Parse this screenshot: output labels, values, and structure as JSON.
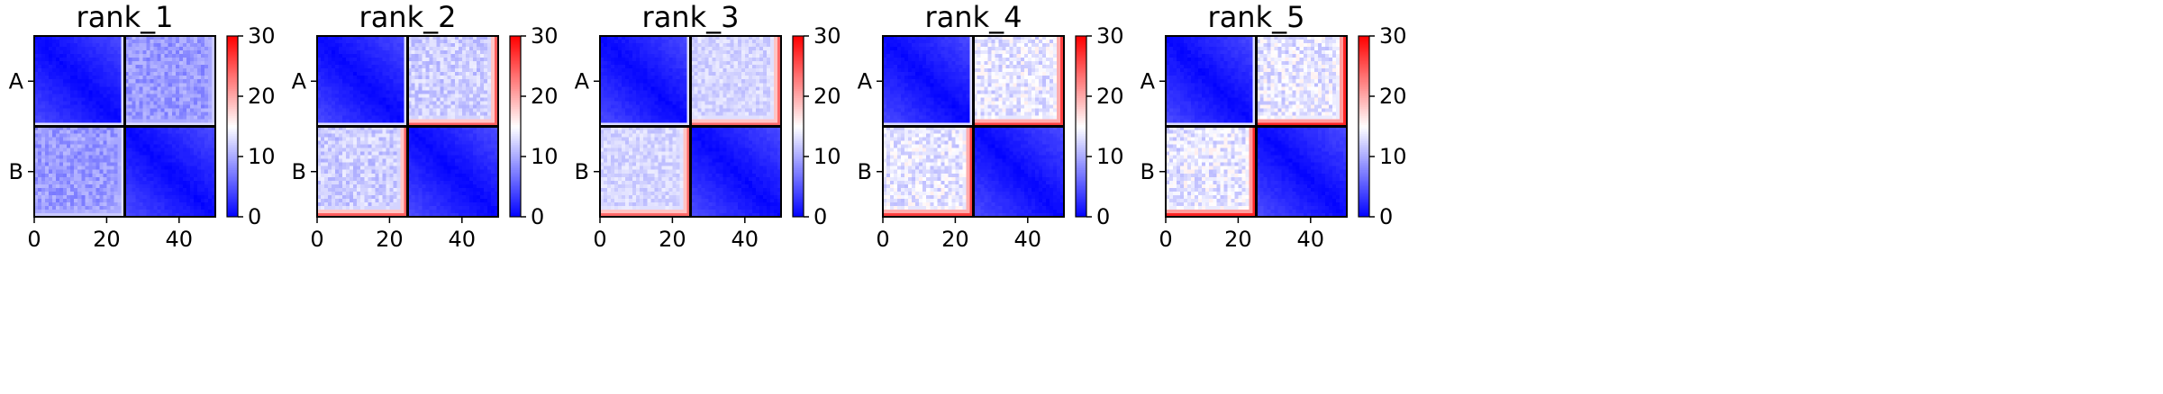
{
  "chart_data": [
    {
      "type": "heatmap",
      "title": "rank_1",
      "colormap": "bwr",
      "grid": false,
      "rows": 50,
      "cols": 50,
      "block_boundary": 25,
      "ylabels": [
        {
          "label": "A",
          "row": 12.5
        },
        {
          "label": "B",
          "row": 37.5
        }
      ],
      "xticks": [
        0,
        20,
        40
      ],
      "xlim": [
        0,
        50
      ],
      "colorbar": {
        "ticks": [
          0,
          10,
          20,
          30
        ],
        "range": [
          0,
          30
        ],
        "position": "right"
      },
      "blocks": {
        "AA": {
          "min": 0,
          "max": 4
        },
        "BB": {
          "min": 0,
          "max": 4
        },
        "AB": {
          "min": 7,
          "max": 11
        },
        "BA": {
          "min": 7,
          "max": 11
        }
      },
      "edge_max": 6
    },
    {
      "type": "heatmap",
      "title": "rank_2",
      "colormap": "bwr",
      "grid": false,
      "rows": 50,
      "cols": 50,
      "block_boundary": 25,
      "ylabels": [
        {
          "label": "A",
          "row": 12.5
        },
        {
          "label": "B",
          "row": 37.5
        }
      ],
      "xticks": [
        0,
        20,
        40
      ],
      "xlim": [
        0,
        50
      ],
      "colorbar": {
        "ticks": [
          0,
          10,
          20,
          30
        ],
        "range": [
          0,
          30
        ],
        "position": "right"
      },
      "blocks": {
        "AA": {
          "min": 0,
          "max": 4
        },
        "BB": {
          "min": 0,
          "max": 4
        },
        "AB": {
          "min": 10,
          "max": 14
        },
        "BA": {
          "min": 10,
          "max": 14
        }
      },
      "edge_max": 18
    },
    {
      "type": "heatmap",
      "title": "rank_3",
      "colormap": "bwr",
      "grid": false,
      "rows": 50,
      "cols": 50,
      "block_boundary": 25,
      "ylabels": [
        {
          "label": "A",
          "row": 12.5
        },
        {
          "label": "B",
          "row": 37.5
        }
      ],
      "xticks": [
        0,
        20,
        40
      ],
      "xlim": [
        0,
        50
      ],
      "colorbar": {
        "ticks": [
          0,
          10,
          20,
          30
        ],
        "range": [
          0,
          30
        ],
        "position": "right"
      },
      "blocks": {
        "AA": {
          "min": 0,
          "max": 4
        },
        "BB": {
          "min": 0,
          "max": 4
        },
        "AB": {
          "min": 11,
          "max": 14
        },
        "BA": {
          "min": 11,
          "max": 14
        }
      },
      "edge_max": 16
    },
    {
      "type": "heatmap",
      "title": "rank_4",
      "colormap": "bwr",
      "grid": false,
      "rows": 50,
      "cols": 50,
      "block_boundary": 25,
      "ylabels": [
        {
          "label": "A",
          "row": 12.5
        },
        {
          "label": "B",
          "row": 37.5
        }
      ],
      "xticks": [
        0,
        20,
        40
      ],
      "xlim": [
        0,
        50
      ],
      "colorbar": {
        "ticks": [
          0,
          10,
          20,
          30
        ],
        "range": [
          0,
          30
        ],
        "position": "right"
      },
      "blocks": {
        "AA": {
          "min": 0,
          "max": 4
        },
        "BB": {
          "min": 0,
          "max": 4
        },
        "AB": {
          "min": 11,
          "max": 16
        },
        "BA": {
          "min": 11,
          "max": 16
        }
      },
      "edge_max": 19
    },
    {
      "type": "heatmap",
      "title": "rank_5",
      "colormap": "bwr",
      "grid": false,
      "rows": 50,
      "cols": 50,
      "block_boundary": 25,
      "ylabels": [
        {
          "label": "A",
          "row": 12.5
        },
        {
          "label": "B",
          "row": 37.5
        }
      ],
      "xticks": [
        0,
        20,
        40
      ],
      "xlim": [
        0,
        50
      ],
      "colorbar": {
        "ticks": [
          0,
          10,
          20,
          30
        ],
        "range": [
          0,
          30
        ],
        "position": "right"
      },
      "blocks": {
        "AA": {
          "min": 0,
          "max": 4
        },
        "BB": {
          "min": 0,
          "max": 4
        },
        "AB": {
          "min": 11,
          "max": 16
        },
        "BA": {
          "min": 11,
          "max": 16
        }
      },
      "edge_max": 21
    }
  ]
}
